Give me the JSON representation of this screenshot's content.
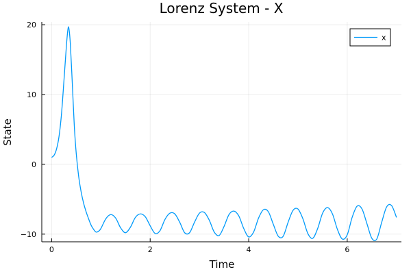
{
  "chart_data": {
    "type": "line",
    "title": "Lorenz System - X",
    "xlabel": "Time",
    "ylabel": "State",
    "xlim": [
      -0.2,
      7.1
    ],
    "ylim": [
      -11.1,
      20.4
    ],
    "xticks": [
      0,
      2,
      4,
      6
    ],
    "xtick_labels": [
      "0",
      "2",
      "4",
      "6"
    ],
    "yticks": [
      -10,
      0,
      10,
      20
    ],
    "ytick_labels": [
      "−10",
      "0",
      "10",
      "20"
    ],
    "grid": true,
    "legend_position": "top-right",
    "series": [
      {
        "name": "x",
        "color": "#009AFA",
        "x": [
          0,
          0.05,
          0.1,
          0.15,
          0.2,
          0.25,
          0.3,
          0.33,
          0.35,
          0.38,
          0.42,
          0.46,
          0.5,
          0.55,
          0.6,
          0.65,
          0.7,
          0.75,
          0.8,
          0.85,
          0.9,
          0.95,
          1.0,
          1.1,
          1.2,
          1.3,
          1.4,
          1.5,
          1.6,
          1.7,
          1.8,
          1.9,
          2.0,
          2.1,
          2.2,
          2.3,
          2.4,
          2.5,
          2.6,
          2.7,
          2.8,
          2.9,
          3.0,
          3.1,
          3.2,
          3.3,
          3.4,
          3.5,
          3.6,
          3.7,
          3.8,
          3.9,
          4.0,
          4.1,
          4.2,
          4.3,
          4.4,
          4.5,
          4.6,
          4.7,
          4.8,
          4.9,
          5.0,
          5.1,
          5.2,
          5.3,
          5.4,
          5.5,
          5.6,
          5.7,
          5.8,
          5.9,
          6.0,
          6.1,
          6.2,
          6.3,
          6.4,
          6.5,
          6.6,
          6.7,
          6.8,
          6.9,
          7.0
        ],
        "y": [
          1.0,
          1.3,
          2.2,
          4.0,
          7.2,
          12.0,
          17.0,
          19.3,
          19.5,
          17.2,
          11.5,
          5.5,
          1.5,
          -1.8,
          -4.0,
          -5.6,
          -6.8,
          -7.8,
          -8.7,
          -9.3,
          -9.7,
          -9.6,
          -9.2,
          -7.8,
          -7.2,
          -7.7,
          -9.1,
          -9.8,
          -9.0,
          -7.6,
          -7.1,
          -7.5,
          -8.8,
          -9.9,
          -9.5,
          -7.9,
          -7.0,
          -7.1,
          -8.3,
          -9.8,
          -9.8,
          -8.3,
          -7.0,
          -6.9,
          -8.0,
          -9.7,
          -10.2,
          -8.9,
          -7.2,
          -6.7,
          -7.4,
          -9.2,
          -10.4,
          -9.7,
          -7.7,
          -6.5,
          -6.8,
          -8.6,
          -10.3,
          -10.3,
          -8.3,
          -6.6,
          -6.4,
          -7.8,
          -9.9,
          -10.6,
          -9.2,
          -7.0,
          -6.2,
          -7.1,
          -9.3,
          -10.7,
          -10.1,
          -7.6,
          -6.0,
          -6.4,
          -8.5,
          -10.6,
          -10.7,
          -8.3,
          -6.1,
          -5.9,
          -7.6
        ]
      }
    ]
  }
}
